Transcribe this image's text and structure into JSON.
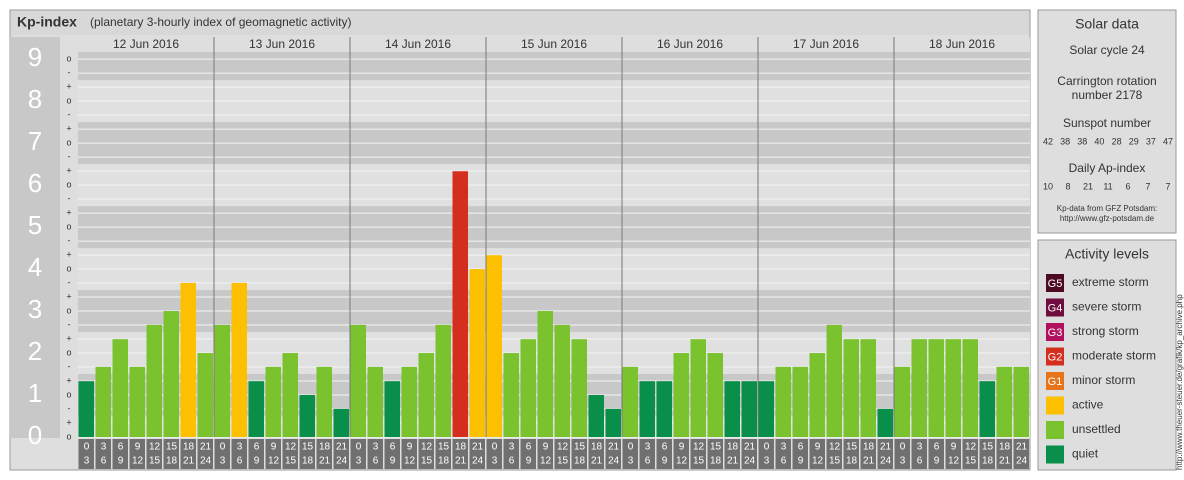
{
  "chart_data": {
    "type": "bar",
    "title": "Kp-index",
    "subtitle": "(planetary 3-hourly index of geomagnetic activity)",
    "days": [
      "12 Jun 2016",
      "13 Jun 2016",
      "14 Jun 2016",
      "15 Jun 2016",
      "16 Jun 2016",
      "17 Jun 2016",
      "18 Jun 2016"
    ],
    "hours_start": [
      "0",
      "3",
      "6",
      "9",
      "12",
      "15",
      "18",
      "21"
    ],
    "hours_end": [
      "3",
      "6",
      "9",
      "12",
      "15",
      "18",
      "21",
      "24"
    ],
    "ylim": [
      0,
      9.17
    ],
    "yticks": [
      0,
      1,
      2,
      3,
      4,
      5,
      6,
      7,
      8,
      9
    ],
    "sublevel_labels": [
      "o",
      "+",
      "-"
    ],
    "series": [
      {
        "name": "Kp",
        "values": [
          1.33,
          1.67,
          2.33,
          1.67,
          2.67,
          3,
          3.67,
          2,
          2.67,
          3.67,
          1.33,
          1.67,
          2,
          1,
          1.67,
          0.67,
          2.67,
          1.67,
          1.33,
          1.67,
          2,
          2.67,
          6.33,
          4,
          4.33,
          2,
          2.33,
          3,
          2.67,
          2.33,
          1,
          0.67,
          1.67,
          1.33,
          1.33,
          2,
          2.33,
          2,
          1.33,
          1.33,
          1.33,
          1.67,
          1.67,
          2,
          2.67,
          2.33,
          2.33,
          0.67,
          1.67,
          2.33,
          2.33,
          2.33,
          2.33,
          1.33,
          1.67,
          1.67
        ],
        "colors": [
          "#0a8f4a",
          "#7ac22e",
          "#7ac22e",
          "#7ac22e",
          "#7ac22e",
          "#7ac22e",
          "#fcc000",
          "#7ac22e",
          "#7ac22e",
          "#fcc000",
          "#0a8f4a",
          "#7ac22e",
          "#7ac22e",
          "#0a8f4a",
          "#7ac22e",
          "#0a8f4a",
          "#7ac22e",
          "#7ac22e",
          "#0a8f4a",
          "#7ac22e",
          "#7ac22e",
          "#7ac22e",
          "#d42e1e",
          "#fcc000",
          "#fcc000",
          "#7ac22e",
          "#7ac22e",
          "#7ac22e",
          "#7ac22e",
          "#7ac22e",
          "#0a8f4a",
          "#0a8f4a",
          "#7ac22e",
          "#0a8f4a",
          "#0a8f4a",
          "#7ac22e",
          "#7ac22e",
          "#7ac22e",
          "#0a8f4a",
          "#0a8f4a",
          "#0a8f4a",
          "#7ac22e",
          "#7ac22e",
          "#7ac22e",
          "#7ac22e",
          "#7ac22e",
          "#7ac22e",
          "#0a8f4a",
          "#7ac22e",
          "#7ac22e",
          "#7ac22e",
          "#7ac22e",
          "#7ac22e",
          "#0a8f4a",
          "#7ac22e",
          "#7ac22e"
        ]
      }
    ]
  },
  "solar": {
    "title": "Solar data",
    "cycle": "Solar cycle 24",
    "carrington": [
      "Carrington rotation",
      "number 2178"
    ],
    "sunspot_title": "Sunspot number",
    "sunspot": [
      "42",
      "38",
      "38",
      "40",
      "28",
      "29",
      "37",
      "47"
    ],
    "ap_title": "Daily Ap-index",
    "ap": [
      "10",
      "8",
      "21",
      "11",
      "6",
      "7",
      "7"
    ],
    "credit": [
      "Kp-data from GFZ Potsdam:",
      "http://www.gfz-potsdam.de"
    ]
  },
  "activity": {
    "title": "Activity levels",
    "levels": [
      {
        "code": "G5",
        "name": "extreme storm",
        "color": "#4d0a24"
      },
      {
        "code": "G4",
        "name": "severe storm",
        "color": "#6e0d3e"
      },
      {
        "code": "G3",
        "name": "strong storm",
        "color": "#b0105e"
      },
      {
        "code": "G2",
        "name": "moderate storm",
        "color": "#d42e1e"
      },
      {
        "code": "G1",
        "name": "minor storm",
        "color": "#e8741a"
      },
      {
        "code": "",
        "name": "active",
        "color": "#fcc000"
      },
      {
        "code": "",
        "name": "unsettled",
        "color": "#7ac22e"
      },
      {
        "code": "",
        "name": "quiet",
        "color": "#0a8f4a"
      }
    ]
  },
  "watermark": "http://www.theuer-steuer.de/grafik/kp_archive.php"
}
